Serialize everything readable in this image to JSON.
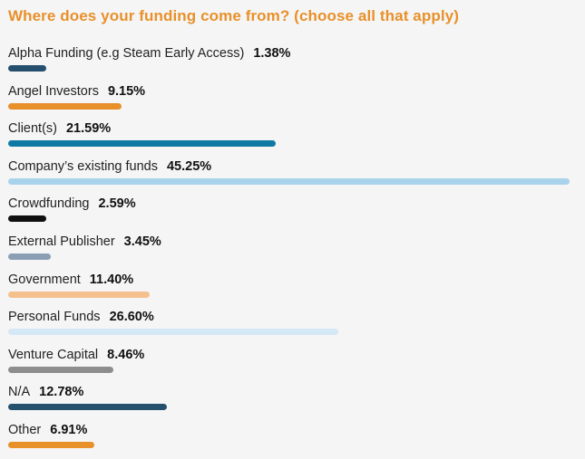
{
  "title": "Where does your funding come from? (choose all that apply)",
  "chart_data": {
    "type": "bar",
    "orientation": "horizontal",
    "title": "Where does your funding come from? (choose all that apply)",
    "categories": [
      "Alpha Funding (e.g Steam Early Access)",
      "Angel Investors",
      "Client(s)",
      "Company’s existing funds",
      "Crowdfunding",
      "External Publisher",
      "Government",
      "Personal Funds",
      "Venture Capital",
      "N/A",
      "Other"
    ],
    "values": [
      1.38,
      9.15,
      21.59,
      45.25,
      2.59,
      3.45,
      11.4,
      26.6,
      8.46,
      12.78,
      6.91
    ],
    "value_labels": [
      "1.38%",
      "9.15%",
      "21.59%",
      "45.25%",
      "2.59%",
      "3.45%",
      "11.40%",
      "26.60%",
      "8.46%",
      "12.78%",
      "6.91%"
    ],
    "colors": [
      "#24506e",
      "#e8902a",
      "#0e79a3",
      "#a8d3ea",
      "#101010",
      "#8c9eb4",
      "#f4c08e",
      "#d4e8f5",
      "#8d8d8d",
      "#24506e",
      "#e8902a"
    ],
    "xlim": [
      0,
      45.25
    ],
    "grid": false,
    "legend": "none"
  }
}
